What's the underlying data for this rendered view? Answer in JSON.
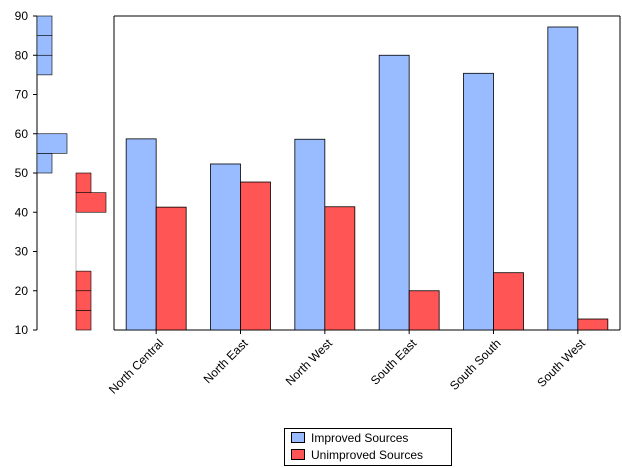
{
  "chart_data": {
    "type": "bar",
    "title": "",
    "xlabel": "",
    "ylabel": "",
    "ylim": [
      10,
      90
    ],
    "yticks": [
      10,
      20,
      30,
      40,
      50,
      60,
      70,
      80,
      90
    ],
    "categories": [
      "North Central",
      "North East",
      "North West",
      "South East",
      "South South",
      "South West"
    ],
    "series": [
      {
        "name": "Improved Sources",
        "color": "#99bbff",
        "values": [
          58.7,
          52.3,
          58.6,
          80.0,
          75.4,
          87.2
        ]
      },
      {
        "name": "Unimproved Sources",
        "color": "#ff5555",
        "values": [
          41.3,
          47.7,
          41.4,
          20.0,
          24.6,
          12.8
        ]
      }
    ],
    "grid": false,
    "legend_position": "bottom-center",
    "y_axis_histograms": [
      {
        "series": "Improved Sources",
        "color": "#99bbff",
        "bins": [
          [
            50,
            55,
            1
          ],
          [
            55,
            60,
            2
          ],
          [
            75,
            80,
            1
          ],
          [
            80,
            85,
            1
          ],
          [
            85,
            90,
            1
          ]
        ]
      },
      {
        "series": "Unimproved Sources",
        "color": "#ff5555",
        "bins": [
          [
            10,
            15,
            1
          ],
          [
            15,
            20,
            1
          ],
          [
            20,
            25,
            1
          ],
          [
            40,
            45,
            2
          ],
          [
            45,
            50,
            1
          ]
        ]
      }
    ]
  },
  "legend": {
    "items": [
      {
        "label": "Improved Sources",
        "color": "#99bbff"
      },
      {
        "label": "Unimproved Sources",
        "color": "#ff5555"
      }
    ]
  }
}
